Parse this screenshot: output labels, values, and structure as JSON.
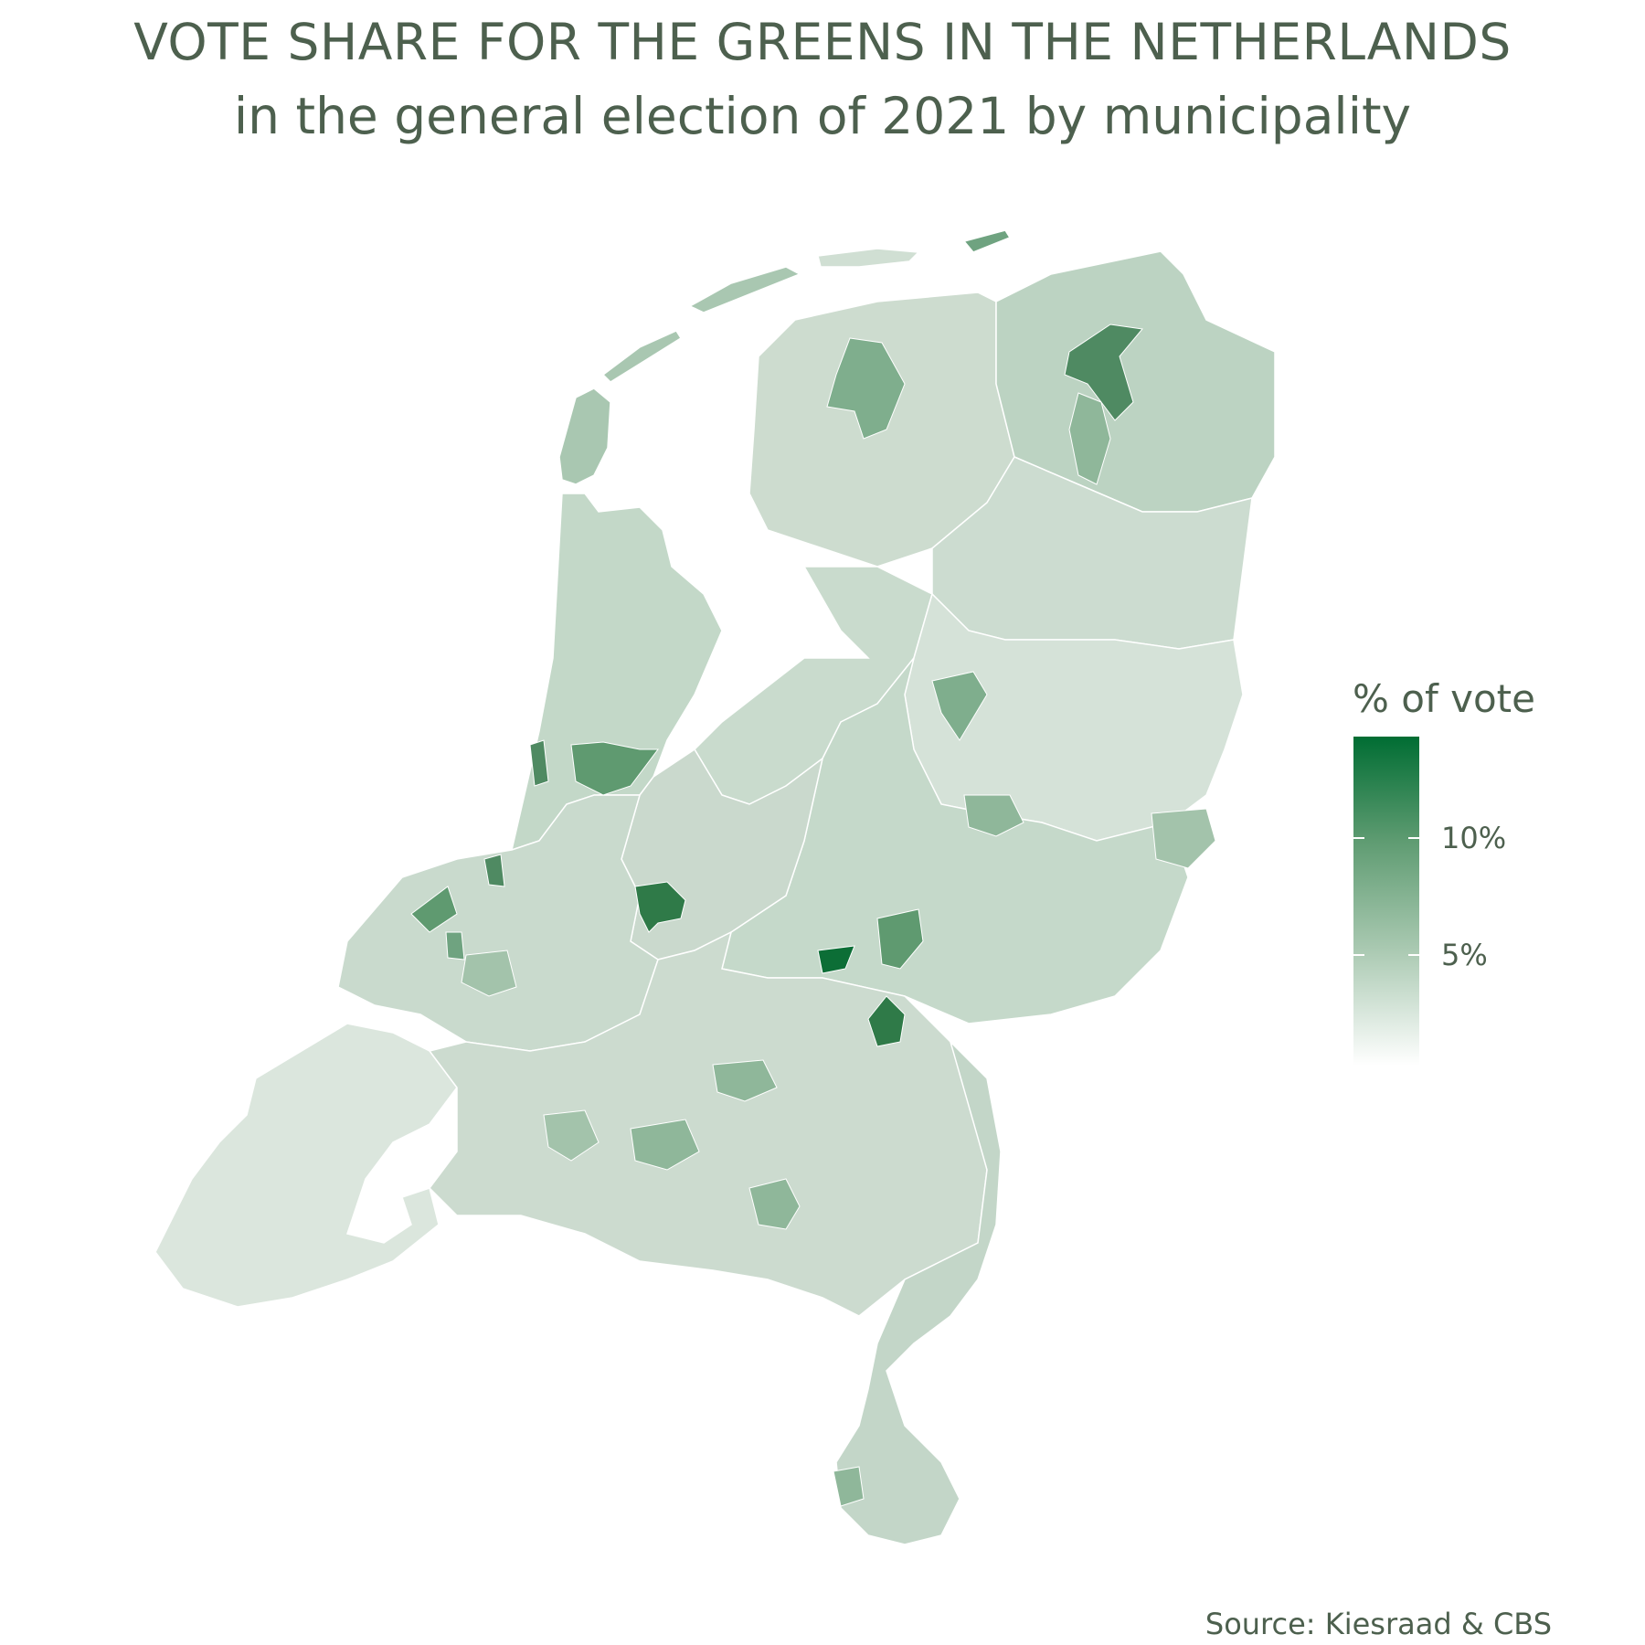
{
  "title": "VOTE SHARE FOR THE GREENS IN THE NETHERLANDS",
  "subtitle": "in the general election of 2021 by municipality",
  "legend": {
    "title": "% of vote",
    "ticks": [
      {
        "label": "10%",
        "value": 10
      },
      {
        "label": "5%",
        "value": 5
      }
    ],
    "color_high": "#006d33",
    "color_low": "#ffffff"
  },
  "source": "Source: Kiesraad & CBS",
  "colors": {
    "base": "#d0dfd3",
    "light": "#e3ece5",
    "mid": "#a9c7b1",
    "strong": "#6fa380",
    "darkest": "#0c6e36",
    "border": "#ffffff",
    "text": "#4d604e"
  }
}
